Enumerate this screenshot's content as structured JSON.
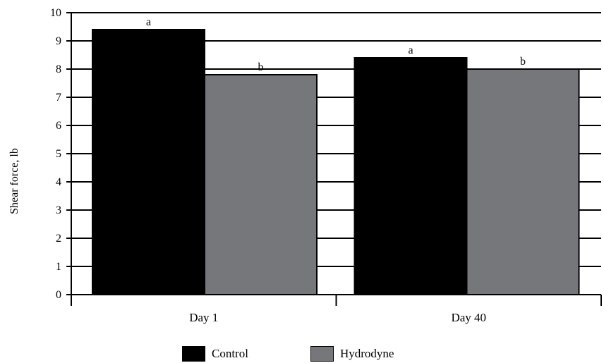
{
  "chart_data": {
    "type": "bar",
    "ylabel": "Shear force, lb",
    "xlabel": "",
    "ylim": [
      0,
      10
    ],
    "yticks": [
      0,
      1,
      2,
      3,
      4,
      5,
      6,
      7,
      8,
      9,
      10
    ],
    "categories": [
      "Day 1",
      "Day 40"
    ],
    "series": [
      {
        "name": "Control",
        "values": [
          9.4,
          8.4
        ],
        "labels": [
          "a",
          "a"
        ],
        "color": "#000000"
      },
      {
        "name": "Hydrodyne",
        "values": [
          7.8,
          8.0
        ],
        "labels": [
          "b",
          "b"
        ],
        "color": "#76777b"
      }
    ],
    "grid": "horizontal",
    "legend": "bottom"
  }
}
